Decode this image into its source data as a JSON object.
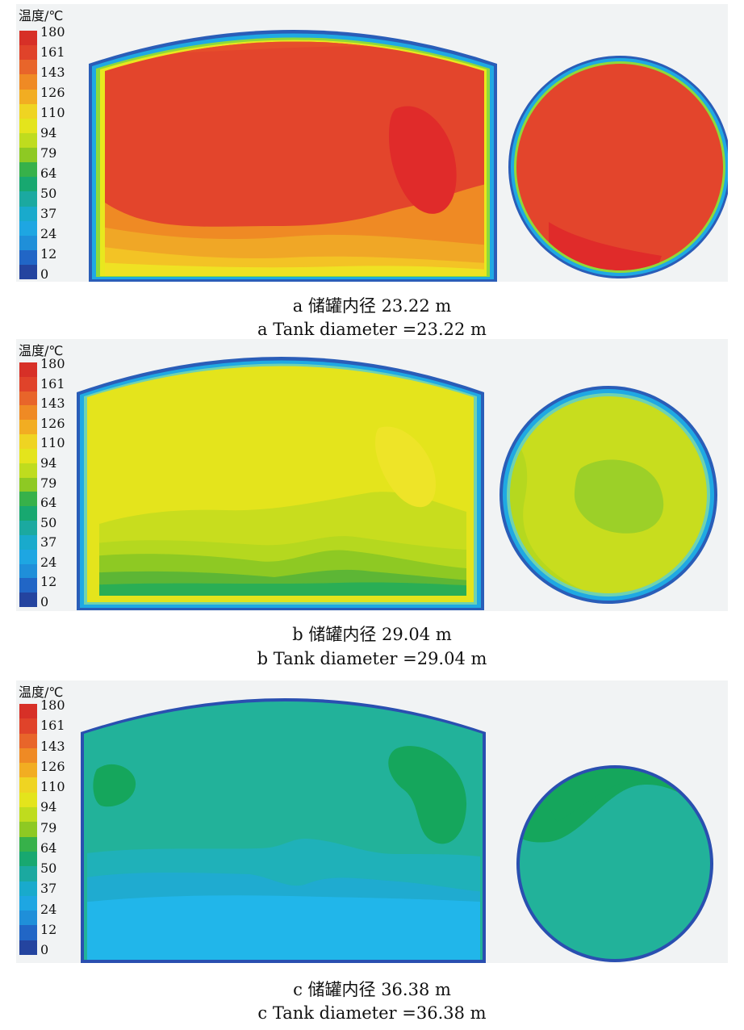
{
  "legend": {
    "title": "温度/℃",
    "ticks": [
      "180",
      "161",
      "143",
      "126",
      "110",
      "94",
      "79",
      "64",
      "50",
      "37",
      "24",
      "12",
      "0"
    ],
    "colors": [
      "#d73027",
      "#e0432a",
      "#e8652a",
      "#ef8a24",
      "#f2ad22",
      "#efd422",
      "#e4e41c",
      "#bfdc1e",
      "#8ec923",
      "#37b14a",
      "#18a870",
      "#1ba9a0",
      "#19aacc",
      "#1ea6e2",
      "#1f8fd9",
      "#2166c6",
      "#24449f"
    ]
  },
  "panels": [
    {
      "caption_cn": "a  储罐内径 23.22 m",
      "caption_en": "a  Tank diameter =23.22 m"
    },
    {
      "caption_cn": "b  储罐内径 29.04 m",
      "caption_en": "b Tank diameter =29.04 m"
    },
    {
      "caption_cn": "c  储罐内径 36.38 m",
      "caption_en": "c  Tank diameter =36.38 m"
    }
  ]
}
